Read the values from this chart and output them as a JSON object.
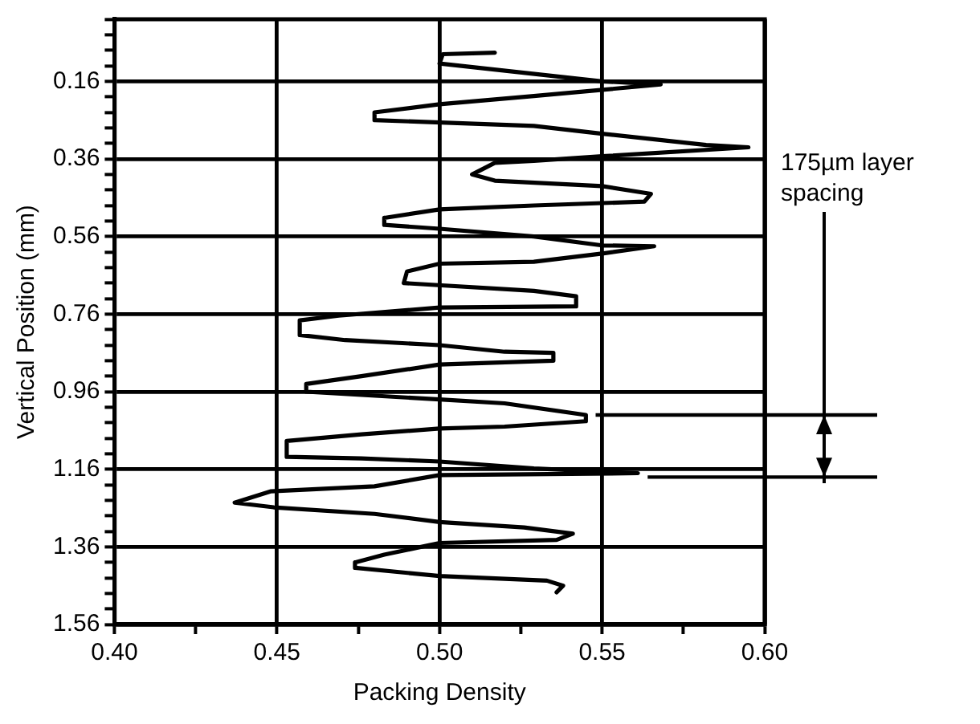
{
  "chart_data": {
    "type": "line",
    "xlabel": "Packing Density",
    "ylabel": "Vertical Position (mm)",
    "color": "#000000",
    "marker": "none",
    "line_style": "solid",
    "grid": true,
    "legend": false,
    "x": [
      0.517,
      0.501,
      0.5,
      0.55,
      0.568,
      0.529,
      0.5,
      0.48,
      0.48,
      0.529,
      0.55,
      0.582,
      0.595,
      0.55,
      0.529,
      0.517,
      0.51,
      0.517,
      0.55,
      0.565,
      0.563,
      0.529,
      0.5,
      0.483,
      0.483,
      0.5,
      0.529,
      0.55,
      0.566,
      0.55,
      0.529,
      0.5,
      0.49,
      0.489,
      0.529,
      0.542,
      0.542,
      0.5,
      0.469,
      0.457,
      0.457,
      0.471,
      0.5,
      0.52,
      0.535,
      0.535,
      0.5,
      0.476,
      0.459,
      0.459,
      0.5,
      0.52,
      0.545,
      0.545,
      0.52,
      0.5,
      0.476,
      0.453,
      0.453,
      0.476,
      0.5,
      0.529,
      0.561,
      0.5,
      0.48,
      0.448,
      0.437,
      0.449,
      0.48,
      0.5,
      0.526,
      0.541,
      0.536,
      0.5,
      0.483,
      0.474,
      0.474,
      0.5,
      0.533,
      0.538,
      0.536
    ],
    "values": [
      0.086,
      0.09,
      0.114,
      0.16,
      0.168,
      0.198,
      0.219,
      0.24,
      0.26,
      0.275,
      0.295,
      0.324,
      0.33,
      0.353,
      0.365,
      0.37,
      0.4,
      0.416,
      0.43,
      0.45,
      0.47,
      0.48,
      0.49,
      0.512,
      0.53,
      0.54,
      0.56,
      0.583,
      0.585,
      0.604,
      0.625,
      0.63,
      0.65,
      0.68,
      0.7,
      0.714,
      0.74,
      0.743,
      0.764,
      0.776,
      0.814,
      0.827,
      0.84,
      0.857,
      0.86,
      0.88,
      0.89,
      0.92,
      0.94,
      0.96,
      0.98,
      0.99,
      1.02,
      1.036,
      1.05,
      1.055,
      1.07,
      1.087,
      1.128,
      1.132,
      1.14,
      1.158,
      1.17,
      1.175,
      1.204,
      1.217,
      1.246,
      1.258,
      1.275,
      1.296,
      1.31,
      1.326,
      1.342,
      1.35,
      1.38,
      1.4,
      1.414,
      1.435,
      1.447,
      1.46,
      1.477
    ],
    "xlim": [
      0.4,
      0.6
    ],
    "xticks": [
      {
        "value": 0.4,
        "label": "0.40"
      },
      {
        "value": 0.425,
        "label": null
      },
      {
        "value": 0.45,
        "label": "0.45"
      },
      {
        "value": 0.475,
        "label": null
      },
      {
        "value": 0.5,
        "label": "0.50"
      },
      {
        "value": 0.525,
        "label": null
      },
      {
        "value": 0.55,
        "label": "0.55"
      },
      {
        "value": 0.575,
        "label": null
      },
      {
        "value": 0.6,
        "label": "0.60"
      }
    ],
    "ylim": [
      1.56,
      0
    ],
    "yticks": [
      {
        "value": 0,
        "label": null
      },
      {
        "value": 0.04,
        "label": null
      },
      {
        "value": 0.08,
        "label": null
      },
      {
        "value": 0.12,
        "label": null
      },
      0.16,
      {
        "value": 0.2,
        "label": null
      },
      {
        "value": 0.24,
        "label": null
      },
      {
        "value": 0.28,
        "label": null
      },
      {
        "value": 0.32,
        "label": null
      },
      0.36,
      {
        "value": 0.4,
        "label": null
      },
      {
        "value": 0.44,
        "label": null
      },
      {
        "value": 0.48,
        "label": null
      },
      {
        "value": 0.52,
        "label": null
      },
      0.56,
      {
        "value": 0.6,
        "label": null
      },
      {
        "value": 0.64,
        "label": null
      },
      {
        "value": 0.68,
        "label": null
      },
      {
        "value": 0.72,
        "label": null
      },
      0.76,
      {
        "value": 0.8,
        "label": null
      },
      {
        "value": 0.84,
        "label": null
      },
      {
        "value": 0.88,
        "label": null
      },
      {
        "value": 0.92,
        "label": null
      },
      0.96,
      {
        "value": 1,
        "label": null
      },
      {
        "value": 1.04,
        "label": null
      },
      {
        "value": 1.08,
        "label": null
      },
      {
        "value": 1.12,
        "label": null
      },
      1.16,
      {
        "value": 1.2,
        "label": null
      },
      {
        "value": 1.24,
        "label": null
      },
      {
        "value": 1.28,
        "label": null
      },
      {
        "value": 1.32,
        "label": null
      },
      1.36,
      {
        "value": 1.4,
        "label": null
      },
      {
        "value": 1.44,
        "label": null
      },
      {
        "value": 1.48,
        "label": null
      },
      {
        "value": 1.52,
        "label": null
      },
      1.56
    ],
    "ref_lines": [
      {
        "axis": "y",
        "value": 1.02,
        "color": "#000000"
      },
      {
        "axis": "y",
        "value": 1.18,
        "color": "#000000"
      }
    ],
    "annotations": [
      "175µm layer spacing"
    ]
  }
}
